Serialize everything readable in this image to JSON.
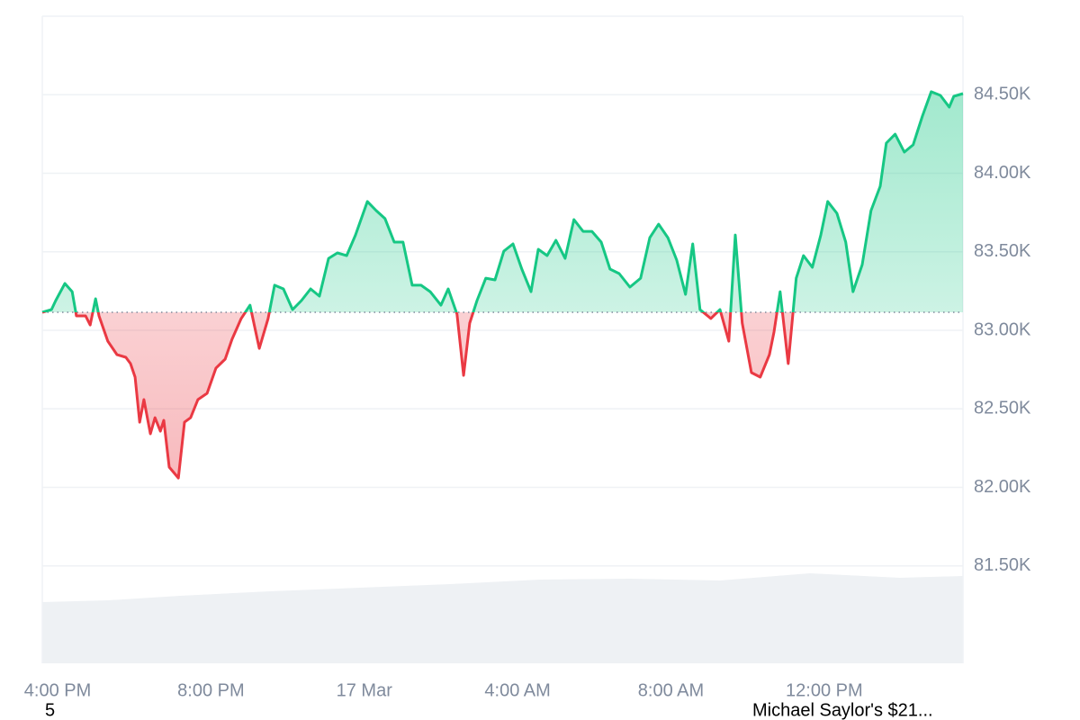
{
  "chart_data": {
    "type": "line",
    "baseline": 83115,
    "xlim": [
      -0.4,
      23.62
    ],
    "ylim": [
      80880,
      85000
    ],
    "xticks": [
      {
        "value": 0,
        "label": "4:00 PM"
      },
      {
        "value": 4,
        "label": "8:00 PM"
      },
      {
        "value": 8,
        "label": "17 Mar"
      },
      {
        "value": 12,
        "label": "4:00 AM"
      },
      {
        "value": 16,
        "label": "8:00 AM"
      },
      {
        "value": 20,
        "label": "12:00 PM"
      }
    ],
    "yticks": [
      {
        "value": 81500,
        "label": "81.50K"
      },
      {
        "value": 82000,
        "label": "82.00K"
      },
      {
        "value": 82500,
        "label": "82.50K"
      },
      {
        "value": 83000,
        "label": "83.00K"
      },
      {
        "value": 83500,
        "label": "83.50K"
      },
      {
        "value": 84000,
        "label": "84.00K"
      },
      {
        "value": 84500,
        "label": "84.50K"
      }
    ],
    "grid": true,
    "up_color": "#16c784",
    "down_color": "#ea3943",
    "x": [
      -0.4,
      -0.16,
      -0.05,
      0.19,
      0.38,
      0.49,
      0.73,
      0.85,
      0.99,
      1.08,
      1.31,
      1.55,
      1.78,
      1.9,
      2.02,
      2.14,
      2.25,
      2.42,
      2.54,
      2.68,
      2.77,
      2.91,
      3.15,
      3.31,
      3.47,
      3.66,
      3.9,
      4.13,
      4.37,
      4.55,
      4.79,
      5.02,
      5.26,
      5.49,
      5.66,
      5.89,
      6.13,
      6.36,
      6.6,
      6.83,
      7.07,
      7.3,
      7.54,
      7.77,
      8.08,
      8.31,
      8.54,
      8.78,
      9.01,
      9.25,
      9.48,
      9.72,
      10.0,
      10.19,
      10.42,
      10.59,
      10.75,
      10.94,
      11.17,
      11.41,
      11.64,
      11.88,
      12.11,
      12.35,
      12.54,
      12.77,
      13.0,
      13.24,
      13.47,
      13.71,
      13.94,
      14.18,
      14.41,
      14.65,
      14.93,
      15.21,
      15.45,
      15.68,
      15.92,
      16.15,
      16.38,
      16.57,
      16.76,
      17.04,
      17.28,
      17.51,
      17.68,
      17.86,
      18.1,
      18.33,
      18.57,
      18.69,
      18.85,
      19.06,
      19.27,
      19.46,
      19.69,
      19.91,
      20.09,
      20.33,
      20.56,
      20.75,
      20.99,
      21.22,
      21.46,
      21.62,
      21.85,
      22.09,
      22.32,
      22.56,
      22.79,
      23.03,
      23.26,
      23.38,
      23.62
    ],
    "values": [
      83115,
      83132,
      83189,
      83298,
      83246,
      83092,
      83092,
      83034,
      83201,
      83092,
      82931,
      82845,
      82828,
      82788,
      82702,
      82415,
      82559,
      82341,
      82444,
      82358,
      82427,
      82129,
      82060,
      82415,
      82444,
      82559,
      82599,
      82759,
      82817,
      82943,
      83075,
      83160,
      82885,
      83075,
      83287,
      83264,
      83132,
      83189,
      83264,
      83218,
      83458,
      83493,
      83476,
      83607,
      83820,
      83762,
      83711,
      83562,
      83562,
      83287,
      83287,
      83246,
      83160,
      83264,
      83103,
      82713,
      83046,
      83189,
      83332,
      83321,
      83504,
      83550,
      83390,
      83246,
      83516,
      83476,
      83573,
      83458,
      83705,
      83630,
      83630,
      83562,
      83390,
      83361,
      83275,
      83332,
      83590,
      83676,
      83590,
      83447,
      83229,
      83550,
      83132,
      83075,
      83132,
      82931,
      83607,
      83046,
      82731,
      82702,
      82845,
      82989,
      83246,
      82788,
      83332,
      83476,
      83401,
      83607,
      83820,
      83745,
      83562,
      83246,
      83418,
      83762,
      83917,
      84192,
      84249,
      84135,
      84181,
      84364,
      84519,
      84496,
      84421,
      84490,
      84507
    ],
    "annotations": [
      "5",
      "Michael Saylor's $21..."
    ]
  }
}
